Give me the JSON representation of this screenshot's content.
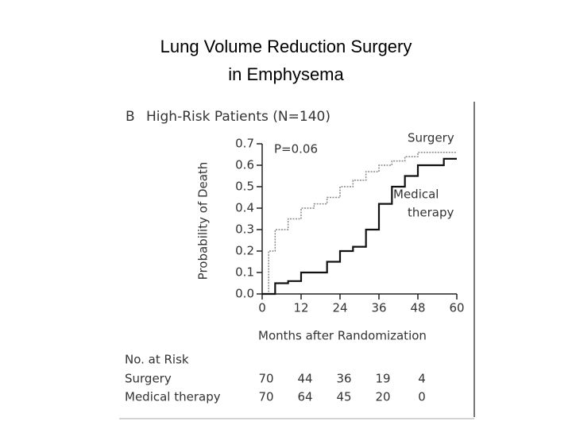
{
  "slide": {
    "title_lines": [
      "Lung Volume Reduction Surgery",
      "in Emphysema"
    ]
  },
  "chart_data": {
    "type": "step",
    "panel": "B",
    "title": "High-Risk Patients (N=140)",
    "xlabel": "Months after Randomization",
    "ylabel": "Probability of Death",
    "annotation": "P=0.06",
    "x": [
      0,
      2,
      4,
      8,
      12,
      16,
      20,
      24,
      28,
      32,
      36,
      40,
      44,
      48,
      52,
      56,
      60
    ],
    "series": [
      {
        "name": "Surgery",
        "color": "#8a8a8a",
        "dashed": true,
        "values": [
          0,
          0.2,
          0.3,
          0.35,
          0.4,
          0.42,
          0.45,
          0.5,
          0.53,
          0.57,
          0.6,
          0.62,
          0.64,
          0.66,
          0.66,
          0.66,
          0.66
        ]
      },
      {
        "name": "Medical therapy",
        "label_lines": [
          "Medical",
          "therapy"
        ],
        "color": "#111111",
        "dashed": false,
        "values": [
          0,
          0,
          0.05,
          0.06,
          0.1,
          0.1,
          0.15,
          0.2,
          0.22,
          0.3,
          0.42,
          0.5,
          0.55,
          0.6,
          0.6,
          0.63,
          0.63
        ]
      }
    ],
    "xlim": [
      0,
      60
    ],
    "xticks": [
      0,
      12,
      24,
      36,
      48,
      60
    ],
    "ylim": [
      0,
      0.7
    ],
    "yticks": [
      {
        "value": 0,
        "label": "0.0"
      },
      0.1,
      0.2,
      0.3,
      0.4,
      0.5,
      0.6,
      0.7
    ],
    "at_risk": {
      "title": "No. at Risk",
      "x": [
        0,
        12,
        24,
        36,
        48
      ],
      "rows": [
        {
          "name": "Surgery",
          "values": [
            70,
            44,
            36,
            19,
            4
          ]
        },
        {
          "name": "Medical therapy",
          "values": [
            70,
            64,
            45,
            20,
            0
          ]
        }
      ]
    }
  }
}
